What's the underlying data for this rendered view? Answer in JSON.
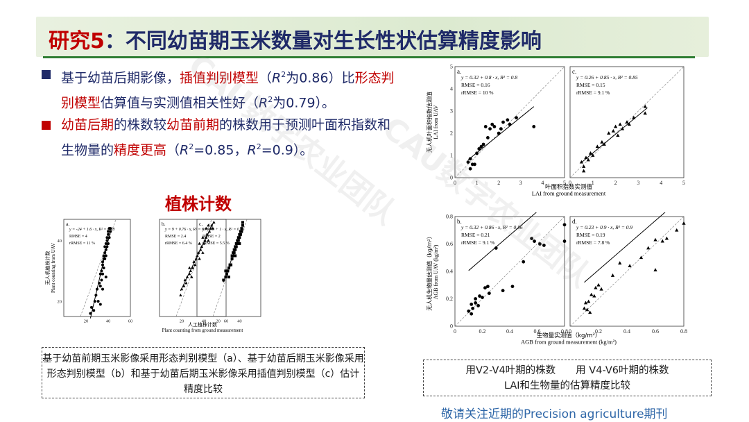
{
  "title": {
    "prefix": "研究5",
    "main": "：不同幼苗期玉米数量对生长性状估算精度影响"
  },
  "bullets": {
    "b1_p1": "基于幼苗后期影像，",
    "b1_red": "插值判别模型",
    "b1_p2": "（",
    "b1_r2a": "R",
    "b1_p3": "为0.86）比",
    "b1_red2": "形态判别模型",
    "b1_p4": "估算值与实测值相关性好（",
    "b1_r2b": "R",
    "b1_p5": "为0.79）。",
    "b2_red1": "幼苗后期",
    "b2_p1": "的株数较",
    "b2_red2": "幼苗前期",
    "b2_p2": "的株数用于预测叶面积指数和生物量的",
    "b2_red3": "精度更高",
    "b2_p3": "（",
    "b2_r2a": "R",
    "b2_p4": "=0.85，",
    "b2_r2b": "R",
    "b2_p5": "=0.9）。",
    "sup": "2"
  },
  "plant_title": "植株计数",
  "caption_left": "基于幼苗前期玉米影像采用形态判别模型（a）、基于幼苗后期玉米影像采用形态判别模型（b）和基于幼苗后期玉米影像采用插值判别模型（c）估计精度比较",
  "caption_right_line1": "用V2-V4叶期的株数　　用 V4-V6叶期的株数",
  "caption_right_line2": "LAI和生物量的估算精度比较",
  "journal": "敬请关注近期的Precision agriculture期刊",
  "watermark": "CAU数字农业团队",
  "chart_data": [
    {
      "type": "scatter",
      "group": "plant",
      "panel": "a.",
      "eq": "y = -24 + 1.6 · x,  R² = 0.78",
      "rmse": "RMSE = 4",
      "rrmse": "rRMSE = 11 %",
      "ylabel_cn": "无人机植株计数",
      "ylabel_en": "Plant counting from UAV",
      "xlim": [
        0,
        60
      ],
      "ylim": [
        15,
        47
      ],
      "xticks": [
        20,
        40,
        60
      ],
      "yticks": [
        20,
        40
      ],
      "slope": 1.6,
      "intercept": -24,
      "fit_x": [
        24,
        42
      ],
      "marker": "circle",
      "points": [
        [
          24,
          16
        ],
        [
          25,
          18
        ],
        [
          27,
          17
        ],
        [
          28,
          20
        ],
        [
          29,
          22
        ],
        [
          30,
          24
        ],
        [
          31,
          20
        ],
        [
          32,
          26
        ],
        [
          33,
          25
        ],
        [
          33,
          29
        ],
        [
          34,
          30
        ],
        [
          34,
          27
        ],
        [
          35,
          32
        ],
        [
          35,
          33
        ],
        [
          35,
          29
        ],
        [
          36,
          31
        ],
        [
          36,
          34
        ],
        [
          36,
          35
        ],
        [
          37,
          36
        ],
        [
          37,
          34
        ],
        [
          37,
          38
        ],
        [
          38,
          37
        ],
        [
          38,
          35
        ],
        [
          38,
          39
        ],
        [
          39,
          40
        ],
        [
          39,
          38
        ],
        [
          39,
          41
        ],
        [
          40,
          42
        ],
        [
          40,
          39
        ],
        [
          40,
          43
        ],
        [
          41,
          41
        ],
        [
          41,
          44
        ],
        [
          42,
          43
        ],
        [
          42,
          44
        ],
        [
          35,
          24
        ],
        [
          33,
          19
        ],
        [
          38,
          28
        ]
      ]
    },
    {
      "type": "scatter",
      "group": "plant",
      "panel": "b.",
      "eq": "y = 9 + 0.76 · x,  R² = 0.79",
      "rmse": "RMSE = 2.4",
      "rrmse": "rRMSE = 6.4 %",
      "xlim": [
        0,
        60
      ],
      "ylim": [
        15,
        47
      ],
      "xticks": [
        20,
        40,
        60
      ],
      "yticks": [],
      "slope": 0.76,
      "intercept": 9,
      "fit_x": [
        19,
        49
      ],
      "marker": "triangle",
      "points": [
        [
          19,
          22
        ],
        [
          20,
          24
        ],
        [
          22,
          25
        ],
        [
          24,
          26
        ],
        [
          25,
          28
        ],
        [
          27,
          29
        ],
        [
          28,
          30
        ],
        [
          29,
          28
        ],
        [
          30,
          31
        ],
        [
          31,
          33
        ],
        [
          32,
          32
        ],
        [
          33,
          34
        ],
        [
          34,
          35
        ],
        [
          35,
          36
        ],
        [
          36,
          34
        ],
        [
          37,
          37
        ],
        [
          38,
          38
        ],
        [
          39,
          36
        ],
        [
          40,
          39
        ],
        [
          41,
          40
        ],
        [
          42,
          41
        ],
        [
          43,
          42
        ],
        [
          44,
          40
        ],
        [
          45,
          43
        ],
        [
          46,
          44
        ],
        [
          47,
          45
        ],
        [
          48,
          44
        ],
        [
          49,
          46
        ],
        [
          36,
          39
        ],
        [
          39,
          41
        ],
        [
          42,
          44
        ],
        [
          27,
          31
        ],
        [
          23,
          27
        ],
        [
          44,
          45
        ]
      ]
    },
    {
      "type": "scatter",
      "group": "plant",
      "panel": "c.",
      "eq": "y = 1.3 + 1 · x,  R² = 0.86",
      "rmse": "RMSE = 2",
      "rrmse": "rRMSE = 5.5 %",
      "xlim": [
        0,
        60
      ],
      "ylim": [
        15,
        47
      ],
      "xticks": [
        20,
        40
      ],
      "yticks": [],
      "slope": 1,
      "intercept": 1.3,
      "fit_x": [
        25,
        43
      ],
      "marker": "square",
      "points": [
        [
          25,
          27
        ],
        [
          27,
          28
        ],
        [
          28,
          29
        ],
        [
          29,
          30
        ],
        [
          30,
          31
        ],
        [
          31,
          32
        ],
        [
          32,
          32
        ],
        [
          33,
          34
        ],
        [
          33,
          35
        ],
        [
          34,
          35
        ],
        [
          34,
          36
        ],
        [
          35,
          36
        ],
        [
          35,
          37
        ],
        [
          36,
          37
        ],
        [
          36,
          38
        ],
        [
          37,
          38
        ],
        [
          37,
          39
        ],
        [
          38,
          39
        ],
        [
          38,
          40
        ],
        [
          39,
          40
        ],
        [
          39,
          41
        ],
        [
          40,
          41
        ],
        [
          40,
          42
        ],
        [
          41,
          42
        ],
        [
          41,
          43
        ],
        [
          42,
          43
        ],
        [
          42,
          44
        ],
        [
          43,
          45
        ],
        [
          43,
          46
        ],
        [
          30,
          28
        ],
        [
          27,
          30
        ],
        [
          40,
          39
        ],
        [
          36,
          35
        ]
      ]
    },
    {
      "type": "scatter",
      "group": "lai",
      "panel": "a.",
      "eq": "y = 0.32 + 0.8 · x,  R² = 0.8",
      "rmse": "RMSE = 0.16",
      "rrmse": "rRMSE = 10 %",
      "ylabel_cn": "无人机叶面积指数估测值",
      "ylabel_en": "LAI from UAV",
      "xlim": [
        0,
        5
      ],
      "ylim": [
        0,
        5
      ],
      "xticks": [
        0,
        1,
        2,
        3,
        4,
        5
      ],
      "yticks": [
        0,
        1,
        2,
        3,
        4,
        5
      ],
      "slope": 0.8,
      "intercept": 0.32,
      "fit_x": [
        0.6,
        3.6
      ],
      "marker": "circle",
      "points": [
        [
          0.6,
          0.7
        ],
        [
          0.7,
          0.4
        ],
        [
          0.7,
          0.85
        ],
        [
          0.9,
          0.6
        ],
        [
          1.0,
          1.1
        ],
        [
          1.1,
          1.3
        ],
        [
          1.3,
          1.5
        ],
        [
          1.4,
          2.3
        ],
        [
          1.5,
          1.8
        ],
        [
          1.6,
          2.2
        ],
        [
          1.8,
          2.3
        ],
        [
          2.0,
          2.0
        ],
        [
          2.1,
          2.2
        ],
        [
          2.2,
          2.5
        ],
        [
          2.4,
          2.6
        ],
        [
          2.5,
          2.4
        ],
        [
          2.8,
          2.7
        ],
        [
          3.6,
          2.3
        ],
        [
          1.7,
          2.4
        ],
        [
          0.8,
          0.6
        ],
        [
          1.2,
          1.4
        ]
      ]
    },
    {
      "type": "scatter",
      "group": "lai",
      "panel": "c.",
      "eq": "y = 0.26 + 0.85 · x,  R² = 0.85",
      "rmse": "RMSE = 0.15",
      "rrmse": "rRMSE = 9.1 %",
      "xlim": [
        0,
        5
      ],
      "ylim": [
        0,
        5
      ],
      "xticks": [
        0,
        1,
        2,
        3,
        4,
        5
      ],
      "yticks": [],
      "slope": 0.85,
      "intercept": 0.26,
      "fit_x": [
        0.5,
        3.4
      ],
      "marker": "triangle",
      "points": [
        [
          0.5,
          0.7
        ],
        [
          0.6,
          0.5
        ],
        [
          0.7,
          0.9
        ],
        [
          0.8,
          0.8
        ],
        [
          0.9,
          1.1
        ],
        [
          1.0,
          1.0
        ],
        [
          1.2,
          1.4
        ],
        [
          1.4,
          1.6
        ],
        [
          1.5,
          1.5
        ],
        [
          1.7,
          2.0
        ],
        [
          1.9,
          2.1
        ],
        [
          2.0,
          2.3
        ],
        [
          2.2,
          2.4
        ],
        [
          2.3,
          2.2
        ],
        [
          2.5,
          2.5
        ],
        [
          2.6,
          2.4
        ],
        [
          2.8,
          2.7
        ],
        [
          3.3,
          2.9
        ],
        [
          3.3,
          3.2
        ],
        [
          0.6,
          0.3
        ],
        [
          2.1,
          1.9
        ]
      ]
    },
    {
      "type": "scatter",
      "group": "agb",
      "panel": "b.",
      "eq": "y = 0.32 + 0.86 · x,  R² = 0.86",
      "rmse": "RMSE = 0.21",
      "rrmse": "rRMSE = 9.1 %",
      "ylabel_cn": "无人机生物量估测值（kg/m²）",
      "ylabel_en": "AGB from UAV (kg/m²)",
      "xlim": [
        0,
        0.8
      ],
      "ylim": [
        0,
        0.8
      ],
      "xticks": [
        0,
        0.2,
        0.4,
        0.6,
        0.8
      ],
      "yticks": [
        0,
        0.2,
        0.4,
        0.6,
        0.8
      ],
      "slope": 0.86,
      "intercept": 0.32,
      "fit_x": [
        0.1,
        0.8
      ],
      "marker": "circle",
      "points": [
        [
          0.1,
          0.11
        ],
        [
          0.12,
          0.16
        ],
        [
          0.13,
          0.13
        ],
        [
          0.15,
          0.17
        ],
        [
          0.17,
          0.15
        ],
        [
          0.18,
          0.22
        ],
        [
          0.2,
          0.21
        ],
        [
          0.22,
          0.28
        ],
        [
          0.25,
          0.24
        ],
        [
          0.3,
          0.57
        ],
        [
          0.35,
          0.26
        ],
        [
          0.42,
          0.29
        ],
        [
          0.5,
          0.47
        ],
        [
          0.56,
          0.64
        ],
        [
          0.58,
          0.62
        ],
        [
          0.62,
          0.6
        ],
        [
          0.65,
          0.59
        ],
        [
          0.8,
          0.74
        ],
        [
          0.8,
          0.62
        ],
        [
          0.24,
          0.29
        ],
        [
          0.12,
          0.09
        ],
        [
          0.15,
          0.2
        ]
      ]
    },
    {
      "type": "scatter",
      "group": "agb",
      "panel": "d.",
      "eq": "y = 0.23 + 0.9 · x,  R² = 0.9",
      "rmse": "RMSE = 0.19",
      "rrmse": "rRMSE = 7.8 %",
      "xlim": [
        0,
        0.8
      ],
      "ylim": [
        0,
        0.8
      ],
      "xticks": [
        0,
        0.2,
        0.4,
        0.6,
        0.8
      ],
      "yticks": [],
      "slope": 0.9,
      "intercept": 0.23,
      "fit_x": [
        0.1,
        0.8
      ],
      "marker": "triangle",
      "points": [
        [
          0.1,
          0.13
        ],
        [
          0.11,
          0.17
        ],
        [
          0.12,
          0.12
        ],
        [
          0.13,
          0.18
        ],
        [
          0.15,
          0.23
        ],
        [
          0.17,
          0.22
        ],
        [
          0.18,
          0.28
        ],
        [
          0.2,
          0.3
        ],
        [
          0.22,
          0.27
        ],
        [
          0.3,
          0.37
        ],
        [
          0.35,
          0.46
        ],
        [
          0.42,
          0.44
        ],
        [
          0.5,
          0.5
        ],
        [
          0.55,
          0.57
        ],
        [
          0.6,
          0.63
        ],
        [
          0.65,
          0.62
        ],
        [
          0.68,
          0.64
        ],
        [
          0.75,
          0.7
        ],
        [
          0.8,
          0.75
        ],
        [
          0.6,
          0.41
        ],
        [
          0.14,
          0.1
        ]
      ]
    }
  ],
  "plant_axes": {
    "xlabel_cn": "人工植株计数",
    "xlabel_en": "Plant counting from ground measurement"
  },
  "lai_axes": {
    "xlabel_cn": "叶面积指数实测值",
    "xlabel_en": "LAI from ground measurement"
  },
  "agb_axes": {
    "xlabel_cn": "生物量实测值（kg/m²）",
    "xlabel_en": "AGB from ground measurement (kg/m²)"
  }
}
